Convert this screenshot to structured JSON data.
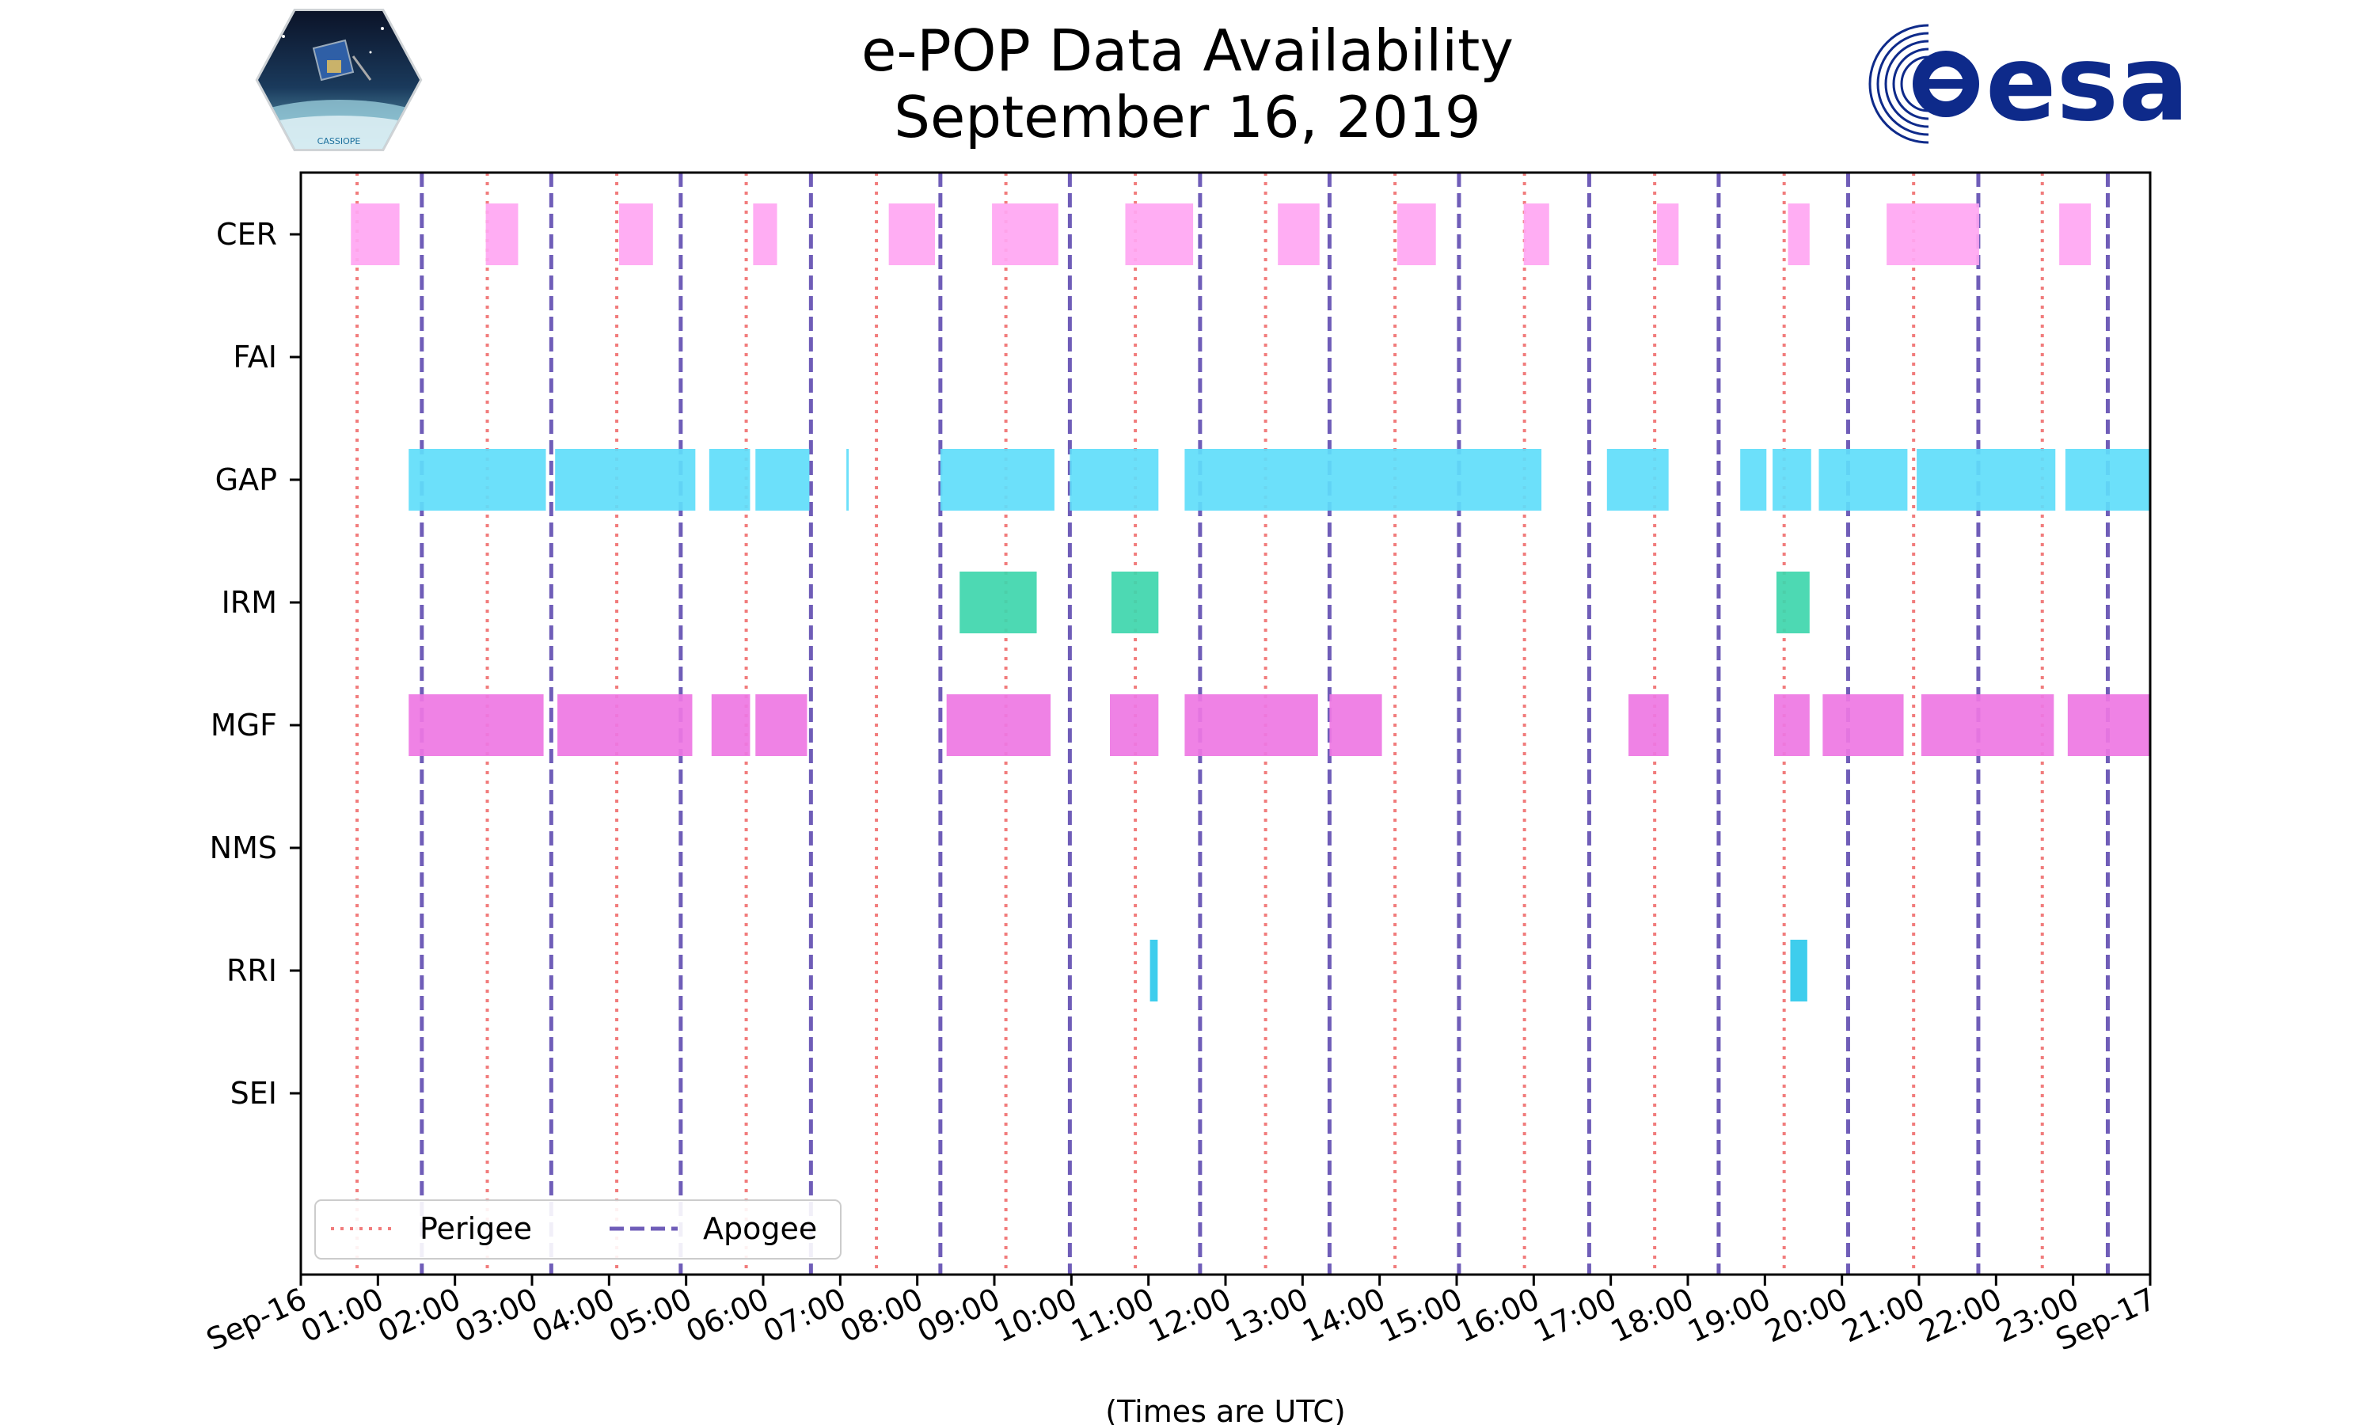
{
  "title": {
    "line1": "e-POP Data Availability",
    "line2": "September 16, 2019"
  },
  "logos": {
    "left_text": "CASSIOPE",
    "right_text": "esa"
  },
  "colors": {
    "CER": "#FFA6F2",
    "GAP": "#5FDDFA",
    "IRM": "#3ED6AC",
    "MGF": "#EE77E3",
    "RRI": "#2EC9EC",
    "perigee": "#F17C7C",
    "apogee": "#6F5DB8",
    "esa_blue": "#0E2A8A"
  },
  "chart_data": {
    "type": "timeline",
    "title": "e-POP Data Availability September 16, 2019",
    "xlabel": "(Times are UTC)",
    "xlim": [
      0,
      24
    ],
    "x_units": "hours UTC",
    "x_ticks": [
      "Sep-16",
      "01:00",
      "02:00",
      "03:00",
      "04:00",
      "05:00",
      "06:00",
      "07:00",
      "08:00",
      "09:00",
      "10:00",
      "11:00",
      "12:00",
      "13:00",
      "14:00",
      "15:00",
      "16:00",
      "17:00",
      "18:00",
      "19:00",
      "20:00",
      "21:00",
      "22:00",
      "23:00",
      "Sep-17"
    ],
    "instruments": [
      "CER",
      "FAI",
      "GAP",
      "IRM",
      "MGF",
      "NMS",
      "RRI",
      "SEI"
    ],
    "perigee_hours": [
      0.73,
      2.42,
      4.1,
      5.78,
      7.47,
      9.15,
      10.83,
      12.52,
      14.2,
      15.88,
      17.57,
      19.25,
      20.93,
      22.6
    ],
    "apogee_hours": [
      1.57,
      3.25,
      4.93,
      6.62,
      8.3,
      9.98,
      11.67,
      13.35,
      15.03,
      16.72,
      18.4,
      20.08,
      21.77,
      23.45
    ],
    "series": [
      {
        "name": "CER",
        "intervals": [
          [
            0.65,
            1.28
          ],
          [
            2.4,
            2.82
          ],
          [
            4.13,
            4.57
          ],
          [
            5.87,
            6.18
          ],
          [
            7.63,
            8.23
          ],
          [
            8.97,
            9.83
          ],
          [
            10.7,
            11.58
          ],
          [
            12.68,
            13.22
          ],
          [
            14.23,
            14.73
          ],
          [
            15.87,
            16.2
          ],
          [
            17.6,
            17.88
          ],
          [
            19.3,
            19.58
          ],
          [
            20.58,
            21.78
          ],
          [
            22.82,
            23.23
          ]
        ]
      },
      {
        "name": "FAI",
        "intervals": []
      },
      {
        "name": "GAP",
        "intervals": [
          [
            1.4,
            3.18
          ],
          [
            3.3,
            5.12
          ],
          [
            5.3,
            5.83
          ],
          [
            5.9,
            6.6
          ],
          [
            7.08,
            7.11
          ],
          [
            8.3,
            9.78
          ],
          [
            9.98,
            11.13
          ],
          [
            11.47,
            16.1
          ],
          [
            16.95,
            17.75
          ],
          [
            18.68,
            19.02
          ],
          [
            19.1,
            19.6
          ],
          [
            19.7,
            20.85
          ],
          [
            20.97,
            22.77
          ],
          [
            22.9,
            24
          ]
        ]
      },
      {
        "name": "IRM",
        "intervals": [
          [
            8.55,
            9.55
          ],
          [
            10.52,
            11.13
          ],
          [
            19.15,
            19.58
          ]
        ]
      },
      {
        "name": "MGF",
        "intervals": [
          [
            1.4,
            3.15
          ],
          [
            3.33,
            5.08
          ],
          [
            5.33,
            5.83
          ],
          [
            5.9,
            6.57
          ],
          [
            8.38,
            9.73
          ],
          [
            10.5,
            11.13
          ],
          [
            11.47,
            13.2
          ],
          [
            13.35,
            14.03
          ],
          [
            17.23,
            17.75
          ],
          [
            19.12,
            19.58
          ],
          [
            19.75,
            20.8
          ],
          [
            21.03,
            22.75
          ],
          [
            22.93,
            24
          ]
        ]
      },
      {
        "name": "NMS",
        "intervals": []
      },
      {
        "name": "RRI",
        "intervals": [
          [
            11.02,
            11.12
          ],
          [
            19.33,
            19.55
          ]
        ]
      },
      {
        "name": "SEI",
        "intervals": []
      }
    ],
    "legend": {
      "position": "lower-left",
      "perigee_label": "Perigee",
      "apogee_label": "Apogee"
    }
  }
}
